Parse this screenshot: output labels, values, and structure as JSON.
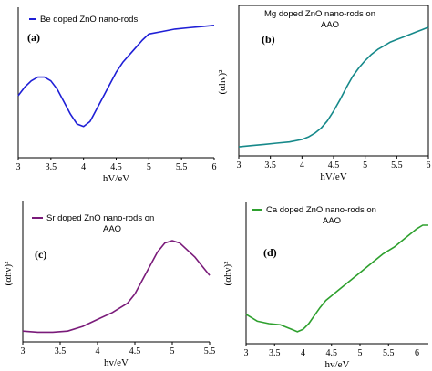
{
  "colors": {
    "blue": "#1f1fd6",
    "teal": "#16898a",
    "purple": "#7a1b7a",
    "green": "#2ea02e"
  },
  "chart_data": [
    {
      "type": "line",
      "panel_label": "(a)",
      "legend": [
        "Be doped ZnO nano-rods"
      ],
      "xlabel": "hV/eV",
      "ylabel": "",
      "xlim": [
        3,
        6
      ],
      "ylim": [
        0,
        100
      ],
      "xticks": [
        "3",
        "3.5",
        "4",
        "4.5",
        "5",
        "5.5",
        "6"
      ],
      "series": [
        {
          "name": "Be doped ZnO nano-rods",
          "x": [
            3.0,
            3.1,
            3.2,
            3.3,
            3.4,
            3.5,
            3.6,
            3.7,
            3.8,
            3.9,
            4.0,
            4.1,
            4.2,
            4.3,
            4.4,
            4.5,
            4.6,
            4.7,
            4.8,
            4.9,
            5.0,
            5.2,
            5.4,
            5.6,
            5.8,
            6.0
          ],
          "y": [
            43,
            50,
            55,
            58,
            58,
            55,
            48,
            38,
            28,
            20,
            18,
            22,
            32,
            42,
            52,
            62,
            70,
            76,
            82,
            88,
            93,
            95,
            97,
            98,
            99,
            100
          ]
        }
      ]
    },
    {
      "type": "line",
      "panel_label": "(b)",
      "legend": [
        "Mg doped ZnO nano-rods on",
        "AAO"
      ],
      "xlabel": "hV/eV",
      "ylabel": "(αhν)²",
      "xlim": [
        3,
        6
      ],
      "ylim": [
        0,
        100
      ],
      "xticks": [
        "3",
        "3.5",
        "4",
        "4.5",
        "5",
        "5.5",
        "6"
      ],
      "series": [
        {
          "name": "Mg doped ZnO nano-rods on AAO",
          "x": [
            3.0,
            3.2,
            3.4,
            3.6,
            3.8,
            4.0,
            4.1,
            4.2,
            4.3,
            4.4,
            4.5,
            4.6,
            4.7,
            4.8,
            4.9,
            5.0,
            5.1,
            5.2,
            5.3,
            5.4,
            5.5,
            5.6,
            5.7,
            5.8,
            5.9,
            6.0
          ],
          "y": [
            0,
            1,
            2,
            3,
            4,
            6,
            8,
            11,
            15,
            21,
            29,
            38,
            48,
            57,
            64,
            70,
            75,
            79,
            82,
            85,
            87,
            89,
            91,
            93,
            95,
            97
          ]
        }
      ]
    },
    {
      "type": "line",
      "panel_label": "(c)",
      "legend": [
        "Sr doped ZnO nano-rods on",
        "AAO"
      ],
      "xlabel": "hv/eV",
      "ylabel": "(αhν)²",
      "xlim": [
        3,
        5.5
      ],
      "ylim": [
        0,
        100
      ],
      "xticks": [
        "3",
        "3.5",
        "4",
        "4.5",
        "5",
        "5.5"
      ],
      "series": [
        {
          "name": "Sr doped ZnO nano-rods on AAO",
          "x": [
            3.0,
            3.2,
            3.4,
            3.6,
            3.8,
            4.0,
            4.2,
            4.4,
            4.5,
            4.6,
            4.7,
            4.8,
            4.9,
            5.0,
            5.1,
            5.2,
            5.3,
            5.4,
            5.5
          ],
          "y": [
            2,
            1,
            1,
            2,
            6,
            12,
            18,
            26,
            34,
            46,
            58,
            70,
            78,
            80,
            78,
            72,
            66,
            58,
            50
          ]
        }
      ]
    },
    {
      "type": "line",
      "panel_label": "(d)",
      "legend": [
        "Ca doped ZnO nano-rods on",
        "AAO"
      ],
      "xlabel": "hv/eV",
      "ylabel": "(αhν)²",
      "xlim": [
        3,
        6.2
      ],
      "ylim": [
        0,
        100
      ],
      "xticks": [
        "3",
        "3.5",
        "4",
        "4.5",
        "5",
        "5.5",
        "6"
      ],
      "series": [
        {
          "name": "Ca doped ZnO nano-rods on AAO",
          "x": [
            3.0,
            3.2,
            3.4,
            3.6,
            3.8,
            3.9,
            4.0,
            4.1,
            4.2,
            4.3,
            4.4,
            4.5,
            4.6,
            4.7,
            4.8,
            4.9,
            5.0,
            5.2,
            5.4,
            5.6,
            5.8,
            6.0,
            6.1,
            6.2
          ],
          "y": [
            18,
            12,
            10,
            9,
            5,
            3,
            5,
            10,
            17,
            24,
            30,
            34,
            38,
            42,
            46,
            50,
            54,
            62,
            70,
            76,
            84,
            92,
            95,
            95
          ]
        }
      ]
    }
  ]
}
